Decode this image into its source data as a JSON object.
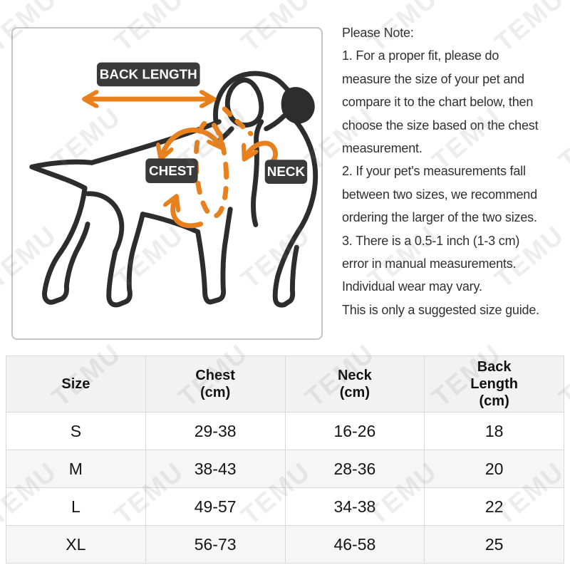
{
  "watermark": {
    "text": "TEMU"
  },
  "diagram": {
    "back_length_label": "BACK LENGTH",
    "chest_label": "CHEST",
    "neck_label": "NECK",
    "colors": {
      "arrow_orange": "#E8801E",
      "label_bg": "#3A3A3A",
      "line_dark": "#2D2D2D"
    }
  },
  "note": {
    "lines": [
      "Please Note:",
      "1. For a proper fit, please do",
      "measure the size of your pet and",
      "compare it to the chart below, then",
      "choose the size based on the chest",
      "measurement.",
      "2. If your pet's measurements fall",
      "between two sizes, we recommend",
      "ordering the larger of the two sizes.",
      "3. There is a 0.5-1 inch (1-3 cm)",
      "error in manual measurements.",
      "Individual wear may vary.",
      "This is only a suggested size guide."
    ]
  },
  "size_chart": {
    "headers": [
      [
        "Size"
      ],
      [
        "Chest",
        "(cm)"
      ],
      [
        "Neck",
        "(cm)"
      ],
      [
        "Back",
        "Length",
        "(cm)"
      ]
    ],
    "rows": [
      [
        "S",
        "29-38",
        "16-26",
        "18"
      ],
      [
        "M",
        "38-43",
        "28-36",
        "20"
      ],
      [
        "L",
        "49-57",
        "34-38",
        "22"
      ],
      [
        "XL",
        "56-73",
        "46-58",
        "25"
      ]
    ]
  },
  "chart_data": {
    "type": "table",
    "columns": [
      "Size",
      "Chest (cm)",
      "Neck (cm)",
      "Back Length (cm)"
    ],
    "rows": [
      [
        "S",
        "29-38",
        "16-26",
        "18"
      ],
      [
        "M",
        "38-43",
        "28-36",
        "20"
      ],
      [
        "L",
        "49-57",
        "34-38",
        "22"
      ],
      [
        "XL",
        "56-73",
        "46-58",
        "25"
      ]
    ]
  }
}
